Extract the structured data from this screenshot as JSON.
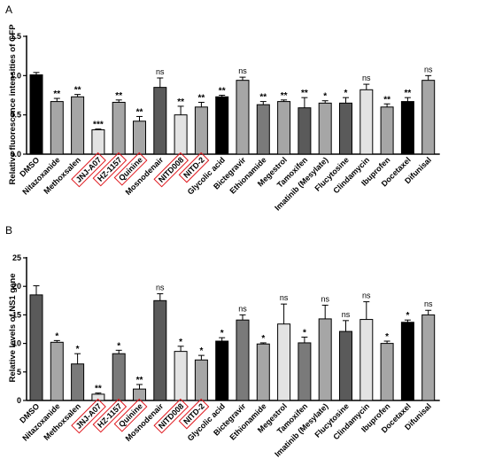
{
  "figure": {
    "panels": [
      {
        "panel_letter": "A",
        "y_axis_label": "Relative fluorescence intensities of GFP",
        "y_tick_labels": [
          "0.0",
          "0.5",
          "1.0",
          "1.5"
        ]
      },
      {
        "panel_letter": "B",
        "y_axis_label": "Relative levels of NS1 gene",
        "y_tick_labels": [
          "0",
          "5",
          "10",
          "15",
          "20",
          "25"
        ]
      }
    ]
  },
  "chart_data": [
    {
      "type": "bar",
      "title": "",
      "panel": "A",
      "ylabel": "Relative fluorescence intensities of GFP",
      "xlabel": "",
      "ylim": [
        0,
        1.5
      ],
      "yticks": [
        0.0,
        0.5,
        1.0,
        1.5
      ],
      "grid": false,
      "categories": [
        "DMSO",
        "Nitazoxanide",
        "Methoxsalen",
        "JNJ-A07",
        "HZ-1157",
        "Quinine",
        "Mosnodenair",
        "NITD008",
        "NITD-2",
        "Glycolic acid",
        "Bictegravir",
        "Ethionamide",
        "Megestrol",
        "Tamoxifen",
        "Imatinib (Mesylate)",
        "Flucytosine",
        "Clindamycin",
        "Ibuprofen",
        "Docetaxel",
        "Difunisal"
      ],
      "boxed_categories": [
        "JNJ-A07",
        "HZ-1157",
        "Quinine",
        "NITD008",
        "NITD-2"
      ],
      "values": [
        1.01,
        0.67,
        0.73,
        0.31,
        0.66,
        0.42,
        0.85,
        0.5,
        0.6,
        0.73,
        0.94,
        0.63,
        0.67,
        0.59,
        0.65,
        0.65,
        0.82,
        0.6,
        0.67,
        0.94
      ],
      "errors": [
        0.03,
        0.04,
        0.03,
        0.01,
        0.03,
        0.06,
        0.12,
        0.11,
        0.06,
        0.02,
        0.04,
        0.04,
        0.02,
        0.13,
        0.03,
        0.07,
        0.07,
        0.04,
        0.05,
        0.06
      ],
      "significance": [
        "",
        "**",
        "**",
        "***",
        "**",
        "**",
        "ns",
        "**",
        "**",
        "**",
        "ns",
        "**",
        "**",
        "**",
        "*",
        "*",
        "ns",
        "**",
        "**",
        "ns"
      ],
      "bar_colors": [
        "#000000",
        "#a6a6a6",
        "#a6a6a6",
        "#e3e3e3",
        "#a6a6a6",
        "#a6a6a6",
        "#5a5a5a",
        "#e3e3e3",
        "#a6a6a6",
        "#000000",
        "#a6a6a6",
        "#7a7a7a",
        "#a6a6a6",
        "#5a5a5a",
        "#a6a6a6",
        "#5a5a5a",
        "#e3e3e3",
        "#a6a6a6",
        "#000000",
        "#a6a6a6"
      ]
    },
    {
      "type": "bar",
      "title": "",
      "panel": "B",
      "ylabel": "Relative levels of NS1 gene",
      "xlabel": "",
      "ylim": [
        0,
        25
      ],
      "yticks": [
        0,
        5,
        10,
        15,
        20,
        25
      ],
      "grid": false,
      "categories": [
        "DMSO",
        "Nitazoxanide",
        "Methoxsalen",
        "JNJ-A07",
        "HZ-1157",
        "Quinine",
        "Mosnodenair",
        "NITD008",
        "NITD-2",
        "Glycolic acid",
        "Bictegravir",
        "Ethionamide",
        "Megestrol",
        "Tamoxifen",
        "Imatinib (Mesylate)",
        "Flucytosine",
        "Clindamycin",
        "Ibuprofen",
        "Docetaxel",
        "Difunisal"
      ],
      "boxed_categories": [
        "JNJ-A07",
        "HZ-1157",
        "Quinine",
        "NITD008",
        "NITD-2"
      ],
      "values": [
        18.5,
        10.2,
        6.4,
        1.1,
        8.2,
        2.0,
        17.5,
        8.6,
        7.1,
        10.4,
        14.1,
        9.9,
        13.4,
        10.1,
        14.3,
        12.1,
        14.2,
        10.0,
        13.7,
        15.0
      ],
      "errors": [
        1.6,
        0.3,
        1.8,
        0.2,
        0.6,
        0.8,
        1.2,
        0.9,
        0.8,
        0.6,
        0.9,
        0.2,
        3.5,
        1.0,
        2.4,
        1.9,
        3.1,
        0.4,
        0.4,
        0.8
      ],
      "significance": [
        "",
        "*",
        "*",
        "**",
        "*",
        "**",
        "ns",
        "*",
        "*",
        "*",
        "ns",
        "*",
        "ns",
        "*",
        "ns",
        "ns",
        "ns",
        "*",
        "*",
        "ns"
      ],
      "bar_colors": [
        "#5a5a5a",
        "#a6a6a6",
        "#7a7a7a",
        "#e3e3e3",
        "#7a7a7a",
        "#a6a6a6",
        "#5a5a5a",
        "#e3e3e3",
        "#a6a6a6",
        "#000000",
        "#7a7a7a",
        "#a6a6a6",
        "#e3e3e3",
        "#7a7a7a",
        "#a6a6a6",
        "#5a5a5a",
        "#e3e3e3",
        "#a6a6a6",
        "#000000",
        "#a6a6a6"
      ]
    }
  ]
}
